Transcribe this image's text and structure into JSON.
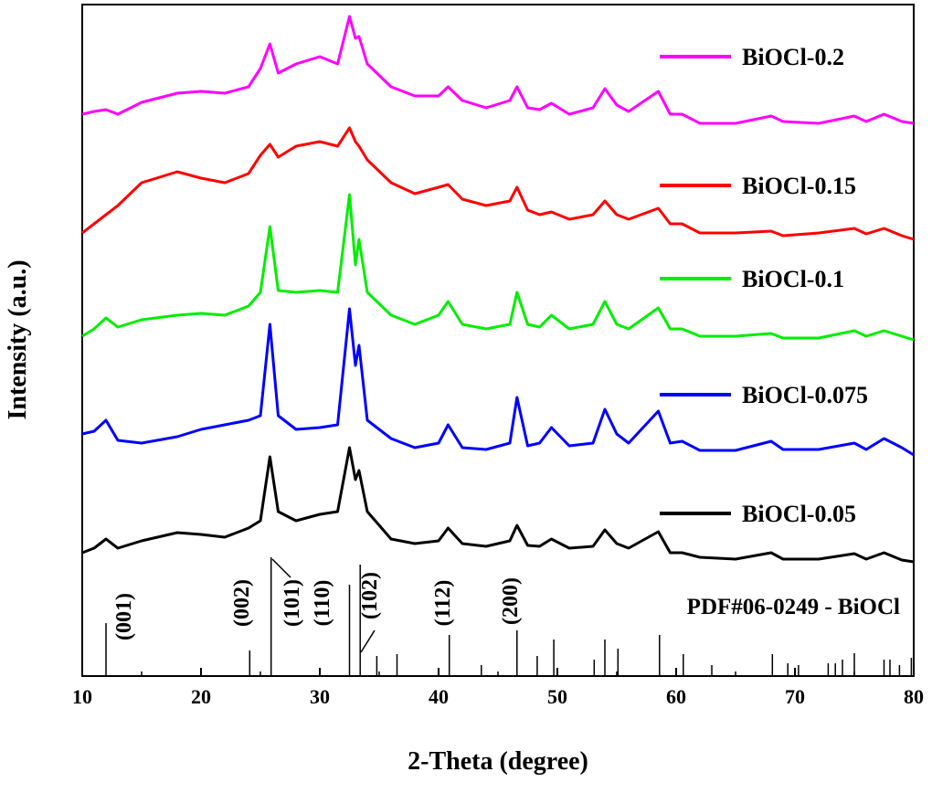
{
  "chart_data": {
    "type": "line",
    "y_label": "Intensity (a.u.)",
    "x_label": "2-Theta (degree)",
    "x": [
      10,
      11,
      12,
      13,
      15,
      18,
      20,
      22,
      24,
      25,
      25.8,
      26.5,
      28,
      30,
      31.5,
      32.5,
      33,
      33.3,
      34,
      36,
      38,
      40,
      40.8,
      42,
      44,
      46,
      46.6,
      47.5,
      48.5,
      49.5,
      51,
      53,
      54,
      55,
      56,
      58.5,
      59.5,
      60.5,
      62,
      65,
      68,
      69,
      72,
      75,
      76,
      77.5,
      79,
      80
    ],
    "xlim": [
      10,
      80
    ],
    "xticks": [
      10,
      20,
      30,
      40,
      50,
      60,
      70,
      80
    ],
    "ylim": [
      0,
      735
    ],
    "series": [
      {
        "name": "BiOCl-0.2",
        "color": "#ff00ff",
        "values": [
          615,
          618,
          620,
          615,
          628,
          638,
          640,
          638,
          645,
          665,
          692,
          660,
          670,
          678,
          670,
          722,
          698,
          700,
          670,
          645,
          635,
          635,
          645,
          630,
          622,
          630,
          645,
          622,
          620,
          627,
          615,
          622,
          643,
          625,
          618,
          640,
          615,
          615,
          605,
          605,
          613,
          607,
          605,
          613,
          607,
          615,
          607,
          605
        ]
      },
      {
        "name": "BiOCl-0.15",
        "color": "#ff0000",
        "values": [
          485,
          495,
          505,
          515,
          540,
          552,
          545,
          540,
          550,
          570,
          582,
          568,
          580,
          585,
          580,
          600,
          585,
          580,
          565,
          540,
          528,
          535,
          538,
          522,
          515,
          520,
          535,
          510,
          505,
          508,
          500,
          505,
          520,
          505,
          500,
          512,
          495,
          495,
          485,
          485,
          487,
          482,
          485,
          490,
          484,
          490,
          482,
          478
        ]
      },
      {
        "name": "BiOCl-0.1",
        "color": "#00ee00",
        "values": [
          372,
          380,
          392,
          382,
          390,
          395,
          397,
          395,
          405,
          420,
          492,
          422,
          420,
          422,
          420,
          527,
          450,
          478,
          420,
          395,
          385,
          395,
          410,
          385,
          380,
          385,
          420,
          385,
          382,
          395,
          380,
          385,
          410,
          385,
          380,
          403,
          380,
          380,
          372,
          372,
          375,
          370,
          370,
          378,
          372,
          378,
          372,
          368
        ]
      },
      {
        "name": "BiOCl-0.075",
        "color": "#0000ff",
        "values": [
          265,
          268,
          280,
          258,
          255,
          262,
          270,
          275,
          280,
          285,
          385,
          285,
          270,
          272,
          275,
          402,
          340,
          362,
          280,
          260,
          250,
          255,
          275,
          250,
          248,
          255,
          305,
          252,
          255,
          272,
          252,
          255,
          292,
          265,
          255,
          290,
          255,
          257,
          247,
          247,
          257,
          248,
          248,
          255,
          248,
          260,
          250,
          242
        ]
      },
      {
        "name": "BiOCl-0.05",
        "color": "#000000",
        "values": [
          135,
          140,
          150,
          140,
          148,
          157,
          155,
          152,
          162,
          170,
          240,
          180,
          170,
          177,
          180,
          250,
          215,
          225,
          180,
          150,
          145,
          148,
          162,
          145,
          142,
          148,
          165,
          143,
          142,
          150,
          140,
          142,
          160,
          145,
          140,
          158,
          135,
          135,
          130,
          128,
          135,
          128,
          128,
          134,
          128,
          135,
          127,
          125
        ]
      }
    ],
    "reference": {
      "name": "PDF#06-0249 - BiOCl",
      "positions": [
        12.0,
        24.1,
        25.9,
        32.5,
        33.4,
        34.8,
        36.5,
        40.9,
        43.6,
        46.6,
        48.3,
        49.7,
        53.1,
        54.0,
        55.1,
        58.6,
        60.6,
        63.0,
        68.1,
        69.4,
        70.3,
        72.8,
        73.4,
        74.0,
        75.0,
        77.5,
        78.0,
        78.8,
        79.8
      ],
      "intensities": [
        58,
        28,
        130,
        100,
        122,
        22,
        24,
        45,
        12,
        50,
        22,
        40,
        18,
        40,
        30,
        45,
        24,
        12,
        24,
        14,
        12,
        14,
        14,
        18,
        25,
        18,
        18,
        12,
        20
      ],
      "peak_labels": [
        "(001)",
        "(002)",
        "(101)",
        "(110)",
        "(102)",
        "(112)",
        "(200)"
      ]
    }
  }
}
